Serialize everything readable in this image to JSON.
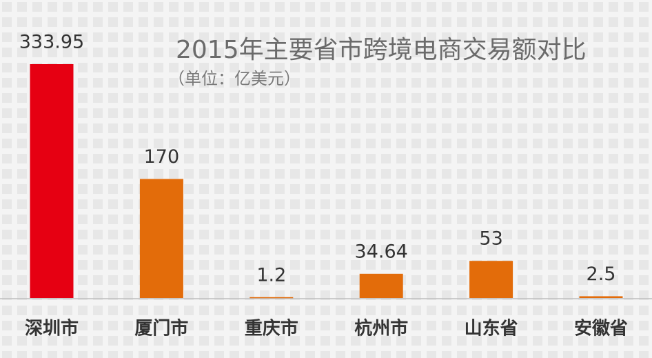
{
  "chart_data": {
    "type": "bar",
    "title": "2015年主要省市跨境电商交易额对比",
    "subtitle": "（单位：亿美元）",
    "categories": [
      "深圳市",
      "厦门市",
      "重庆市",
      "杭州市",
      "山东省",
      "安徽省"
    ],
    "values": [
      333.95,
      170,
      1.2,
      34.64,
      53,
      2.5
    ],
    "colors": [
      "#e60012",
      "#e36c0a",
      "#e36c0a",
      "#e36c0a",
      "#e36c0a",
      "#e36c0a"
    ]
  }
}
